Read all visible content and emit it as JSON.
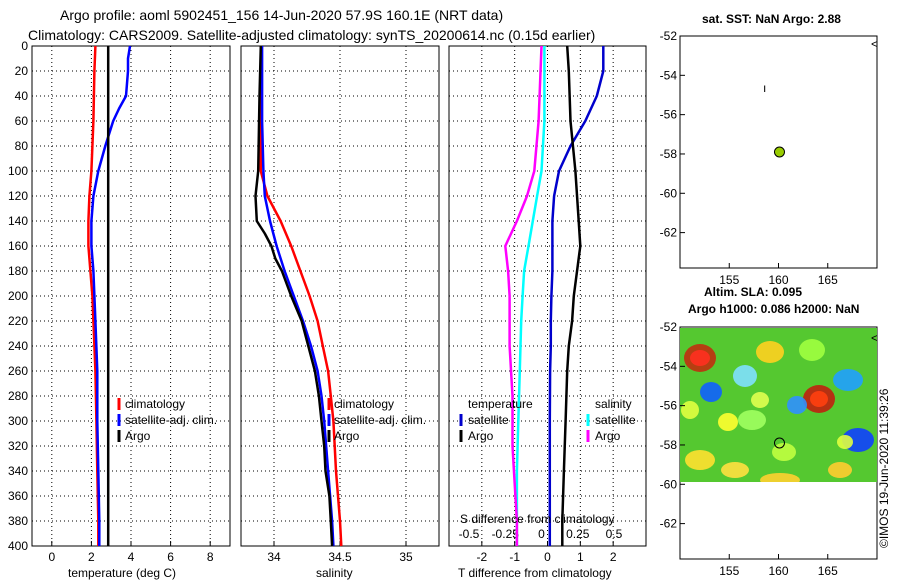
{
  "header": {
    "line1": "Argo profile: aoml 5902451_156 14-Jun-2020 57.9S 160.1E (NRT data)",
    "line2": "Climatology: CARS2009. Satellite-adjusted climatology: synTS_20200614.nc (0.15d earlier)"
  },
  "colors": {
    "climatology": "#ff0000",
    "satellite": "#0000ff",
    "argo": "#000000",
    "t_satellite": "#0000cc",
    "s_satellite": "#00ffff",
    "s_argo": "#ff00ff",
    "argo_marker": "#99cc00"
  },
  "depth_ticks": [
    0,
    20,
    40,
    60,
    80,
    100,
    120,
    140,
    160,
    180,
    200,
    220,
    240,
    260,
    280,
    300,
    320,
    340,
    360,
    380,
    400
  ],
  "chart_data": [
    {
      "type": "line",
      "name": "temperature",
      "xlabel": "temperature (deg C)",
      "xlim": [
        -1,
        9
      ],
      "ylim": [
        0,
        400
      ],
      "xticks": [
        "0",
        "2",
        "4",
        "6",
        "8"
      ],
      "xtick_values": [
        0,
        2,
        4,
        6,
        8
      ],
      "legend": [
        "climatology",
        "satellite-adj. clim.",
        "Argo"
      ],
      "series": [
        {
          "name": "climatology",
          "color_key": "climatology",
          "depth": [
            0,
            20,
            60,
            100,
            120,
            140,
            160,
            180,
            200,
            220,
            260,
            300,
            340,
            380,
            400
          ],
          "values": [
            2.2,
            2.15,
            2.1,
            2.0,
            1.9,
            1.85,
            1.85,
            1.95,
            2.05,
            2.1,
            2.2,
            2.25,
            2.3,
            2.35,
            2.35
          ]
        },
        {
          "name": "satellite-adj. clim.",
          "color_key": "satellite",
          "depth": [
            0,
            10,
            20,
            40,
            50,
            60,
            80,
            100,
            120,
            140,
            160,
            180,
            200,
            220,
            260,
            300,
            340,
            380,
            400
          ],
          "values": [
            3.95,
            3.85,
            3.85,
            3.75,
            3.4,
            3.1,
            2.7,
            2.35,
            2.1,
            2.0,
            2.0,
            2.1,
            2.15,
            2.2,
            2.3,
            2.3,
            2.35,
            2.4,
            2.4
          ]
        },
        {
          "name": "Argo",
          "color_key": "argo",
          "depth": [
            0,
            400
          ],
          "values": [
            2.85,
            2.85
          ]
        }
      ]
    },
    {
      "type": "line",
      "name": "salinity",
      "xlabel": "salinity",
      "xlim": [
        33.75,
        35.25
      ],
      "ylim": [
        0,
        400
      ],
      "xticks": [
        "34",
        "34.5",
        "35"
      ],
      "xtick_values": [
        34,
        34.5,
        35
      ],
      "legend": [
        "climatology",
        "satellite-adj. clim.",
        "Argo"
      ],
      "series": [
        {
          "name": "climatology",
          "color_key": "climatology",
          "depth": [
            0,
            60,
            100,
            120,
            140,
            160,
            180,
            200,
            220,
            240,
            260,
            280,
            300,
            340,
            380,
            400
          ],
          "values": [
            33.9,
            33.9,
            33.9,
            33.95,
            34.05,
            34.13,
            34.2,
            34.27,
            34.33,
            34.37,
            34.41,
            34.43,
            34.45,
            34.47,
            34.5,
            34.51
          ]
        },
        {
          "name": "satellite-adj. clim.",
          "color_key": "satellite",
          "depth": [
            0,
            60,
            100,
            120,
            140,
            160,
            180,
            200,
            220,
            240,
            260,
            280,
            300,
            340,
            380,
            400
          ],
          "values": [
            33.91,
            33.91,
            33.92,
            33.93,
            33.97,
            34.02,
            34.08,
            34.15,
            34.22,
            34.28,
            34.33,
            34.36,
            34.38,
            34.41,
            34.44,
            34.45
          ]
        },
        {
          "name": "Argo",
          "color_key": "argo",
          "depth": [
            0,
            40,
            100,
            120,
            140,
            150,
            160,
            170,
            180,
            200,
            220,
            240,
            260,
            280,
            300,
            320,
            340,
            360,
            380,
            400
          ],
          "values": [
            33.9,
            33.89,
            33.88,
            33.86,
            33.87,
            33.93,
            33.98,
            34.01,
            34.06,
            34.13,
            34.21,
            34.26,
            34.31,
            34.34,
            34.36,
            34.38,
            34.39,
            34.42,
            34.43,
            34.44
          ]
        }
      ]
    },
    {
      "type": "line",
      "name": "differences",
      "xlabel": "T difference from climatology",
      "xlim": [
        -3,
        3
      ],
      "ylim": [
        0,
        400
      ],
      "xticks": [
        "-2",
        "-1",
        "0",
        "1",
        "2"
      ],
      "xtick_values": [
        -2,
        -1,
        0,
        1,
        2
      ],
      "s_axis_label": "S difference from climatology",
      "s_ticks": [
        "-0.5",
        "-0.25",
        "0",
        "0.25",
        "0.5"
      ],
      "s_tick_values": [
        -0.5,
        -0.25,
        0,
        0.25,
        0.5
      ],
      "legend_temperature_title": "temperature",
      "legend_salinity_title": "salinity",
      "legend_t": [
        "satellite",
        "Argo"
      ],
      "legend_s": [
        "satellite",
        "Argo"
      ],
      "series": [
        {
          "name": "T satellite",
          "color_key": "t_satellite",
          "depth": [
            0,
            20,
            40,
            60,
            80,
            100,
            120,
            140,
            160,
            180,
            200,
            220,
            240,
            260,
            300,
            340,
            380,
            400
          ],
          "values": [
            1.7,
            1.7,
            1.5,
            1.15,
            0.7,
            0.35,
            0.2,
            0.15,
            0.15,
            0.15,
            0.12,
            0.1,
            0.1,
            0.08,
            0.07,
            0.07,
            0.07,
            0.07
          ]
        },
        {
          "name": "T Argo",
          "color_key": "argo",
          "depth": [
            0,
            20,
            60,
            100,
            140,
            160,
            200,
            220,
            240,
            260,
            300,
            340,
            380,
            400
          ],
          "values": [
            0.6,
            0.65,
            0.7,
            0.85,
            0.95,
            1.0,
            0.8,
            0.75,
            0.65,
            0.6,
            0.55,
            0.5,
            0.45,
            0.45
          ]
        },
        {
          "name": "S satellite",
          "color_key": "s_satellite",
          "depth": [
            0,
            60,
            100,
            120,
            140,
            160,
            180,
            200,
            220,
            260,
            300,
            340,
            380,
            400
          ],
          "values": [
            0.02,
            0.02,
            0.0,
            -0.03,
            -0.06,
            -0.09,
            -0.12,
            -0.13,
            -0.14,
            -0.15,
            -0.16,
            -0.17,
            -0.17,
            -0.17
          ]
        },
        {
          "name": "S Argo",
          "color_key": "s_argo",
          "depth": [
            0,
            60,
            100,
            120,
            140,
            160,
            180,
            200,
            240,
            280,
            320,
            360,
            380,
            400
          ],
          "values": [
            0.0,
            -0.02,
            -0.05,
            -0.1,
            -0.17,
            -0.25,
            -0.23,
            -0.22,
            -0.22,
            -0.2,
            -0.2,
            -0.18,
            -0.17,
            -0.17
          ]
        }
      ]
    }
  ],
  "maps": [
    {
      "name": "sst-map",
      "title": "sat. SST: NaN Argo: 2.88",
      "title2": "",
      "lat_ticks": [
        "-52",
        "-54",
        "-56",
        "-58",
        "-60",
        "-62"
      ],
      "lat_values": [
        -52,
        -54,
        -56,
        -58,
        -60,
        -62
      ],
      "lon_ticks": [
        "155",
        "160",
        "165"
      ],
      "lon_values": [
        155,
        160,
        165
      ],
      "lat_range": [
        -52,
        -63.8
      ],
      "lon_range": [
        150,
        170
      ],
      "argo_position": {
        "lon": 160.1,
        "lat": -57.9
      }
    },
    {
      "name": "sla-map",
      "title": "Altim. SLA: 0.095",
      "title2": "Argo h1000: 0.086 h2000: NaN",
      "lat_ticks": [
        "-52",
        "-54",
        "-56",
        "-58",
        "-60",
        "-62"
      ],
      "lat_values": [
        -52,
        -54,
        -56,
        -58,
        -60,
        -62
      ],
      "lon_ticks": [
        "155",
        "160",
        "165"
      ],
      "lon_values": [
        155,
        160,
        165
      ],
      "lat_range": [
        -52,
        -63.8
      ],
      "lon_range": [
        150,
        170
      ],
      "argo_position": {
        "lon": 160.1,
        "lat": -57.9
      }
    }
  ],
  "watermark": "©IMOS 19-Jun-2020 11:39:26"
}
